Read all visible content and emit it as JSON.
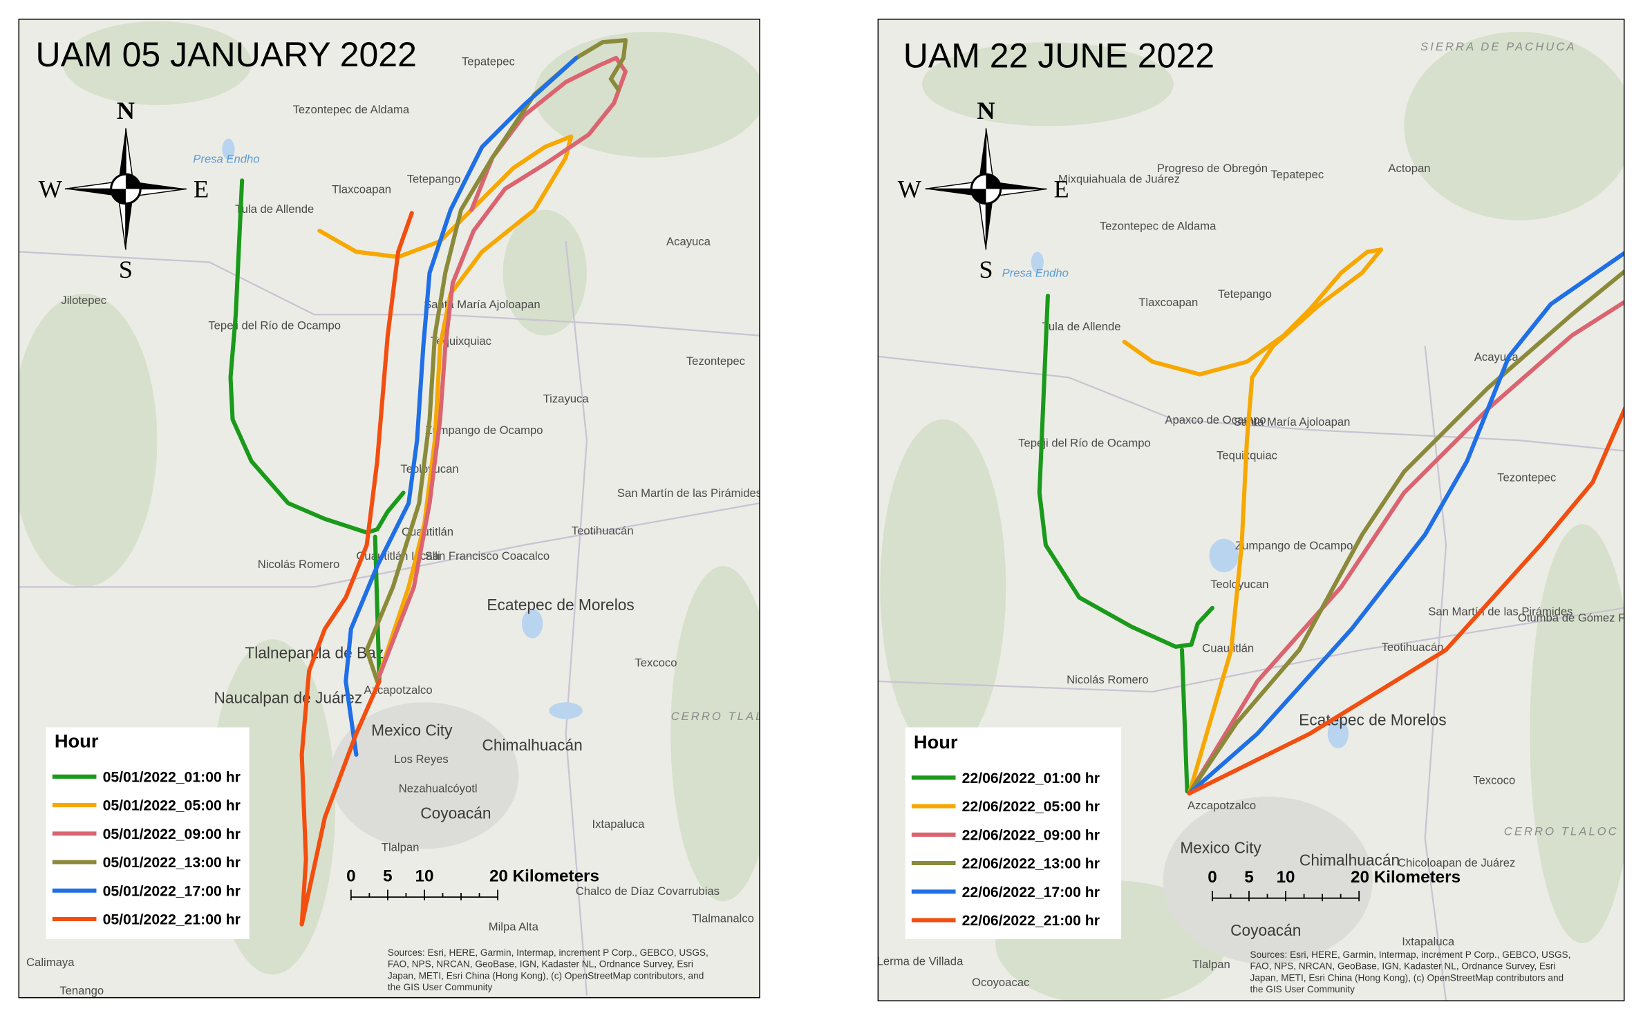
{
  "panels": [
    {
      "title": "UAM 05 JANUARY 2022",
      "compass": {
        "north": "N",
        "south": "S",
        "east": "E",
        "west": "W"
      },
      "legend": {
        "title": "Hour",
        "entries": [
          {
            "name": "05/01/2022_01:00 hr",
            "color": "#1a9a1a"
          },
          {
            "name": "05/01/2022_05:00 hr",
            "color": "#f7a800"
          },
          {
            "name": "05/01/2022_09:00 hr",
            "color": "#da6470"
          },
          {
            "name": "05/01/2022_13:00 hr",
            "color": "#8a8a3a"
          },
          {
            "name": "05/01/2022_17:00 hr",
            "color": "#1f6fe6"
          },
          {
            "name": "05/01/2022_21:00 hr",
            "color": "#f24e10"
          }
        ]
      },
      "scale": [
        "0",
        "5",
        "10",
        "20 Kilometers"
      ],
      "attribution": [
        "Sources: Esri, HERE, Garmin, Intermap, increment P Corp., GEBCO, USGS,",
        "FAO, NPS, NRCAN, GeoBase, IGN, Kadaster NL, Ordnance Survey, Esri",
        "Japan, METI, Esri China (Hong Kong), (c) OpenStreetMap contributors, and",
        "the GIS User Community"
      ],
      "places": [
        "Tepatepec",
        "Tezontepec de Aldama",
        "Presa Endho",
        "Tula de Allende",
        "Tlaxcoapan",
        "Tetepango",
        "Acayuca",
        "Jilotepec",
        "Tepeji del Río de Ocampo",
        "Santa María Ajoloapan",
        "Tequixquiac",
        "Tezontepec",
        "Tizayuca",
        "Zumpango de Ocampo",
        "Teoloyucan",
        "San Martín de las Pirámides",
        "Cuautitlán",
        "Teotihuacán",
        "Nicolás Romero",
        "Cuautitlán Izcalli",
        "San Francisco Coacalco",
        "Ecatepec de Morelos",
        "Tlalnepantla de Baz",
        "Naucalpan de Juárez",
        "Azcapotzalco",
        "Texcoco",
        "Mexico City",
        "Chimalhuacán",
        "Los Reyes",
        "Nezahualcóyotl",
        "Coyoacán",
        "Ixtapaluca",
        "Tlalpan",
        "Chalco de Díaz Covarrubias",
        "Milpa Alta",
        "Tlalmanalco",
        "Calimaya",
        "Tenango",
        "CERRO TLALOC"
      ]
    },
    {
      "title": "UAM 22 JUNE 2022",
      "compass": {
        "north": "N",
        "south": "S",
        "east": "E",
        "west": "W"
      },
      "legend": {
        "title": "Hour",
        "entries": [
          {
            "name": "22/06/2022_01:00 hr",
            "color": "#1a9a1a"
          },
          {
            "name": "22/06/2022_05:00 hr",
            "color": "#f7a800"
          },
          {
            "name": "22/06/2022_09:00 hr",
            "color": "#da6470"
          },
          {
            "name": "22/06/2022_13:00 hr",
            "color": "#8a8a3a"
          },
          {
            "name": "22/06/2022_17:00 hr",
            "color": "#1f6fe6"
          },
          {
            "name": "22/06/2022_21:00 hr",
            "color": "#f24e10"
          }
        ]
      },
      "scale": [
        "0",
        "5",
        "10",
        "20 Kilometers"
      ],
      "attribution": [
        "Sources: Esri, HERE, Garmin, Intermap, increment P Corp., GEBCO, USGS,",
        "FAO, NPS, NRCAN, GeoBase, IGN, Kadaster NL, Ordnance Survey, Esri",
        "Japan, METI, Esri China (Hong Kong), (c) OpenStreetMap contributors and",
        "the GIS User Community"
      ],
      "places": [
        "SIERRA DE PACHUCA",
        "Mixquiahuala de Juárez",
        "Progreso de Obregón",
        "Tepatepec",
        "Actopan",
        "Presa Endho",
        "Tula de Allende",
        "Tezontepec de Aldama",
        "Tlaxcoapan",
        "Tetepango",
        "Acayuca",
        "Apaxco de Ocampo",
        "Santa María Ajoloapan",
        "Tequixquiac",
        "Tezontepec",
        "Tepeji del Río de Ocampo",
        "Zumpango de Ocampo",
        "Teoloyucan",
        "San Martín de las Pirámides",
        "Otumba de Gómez Farías",
        "Teotihuacán",
        "Cuautitlán",
        "Nicolás Romero",
        "Ecatepec de Morelos",
        "Azcapotzalco",
        "Texcoco",
        "CERRO TLALOC",
        "Mexico City",
        "Chimalhuacán",
        "Chicoloapan de Juárez",
        "Coyoacán",
        "Ixtapaluca",
        "Lerma de Villada",
        "Tlalpan",
        "Ocoyoacac"
      ]
    }
  ]
}
